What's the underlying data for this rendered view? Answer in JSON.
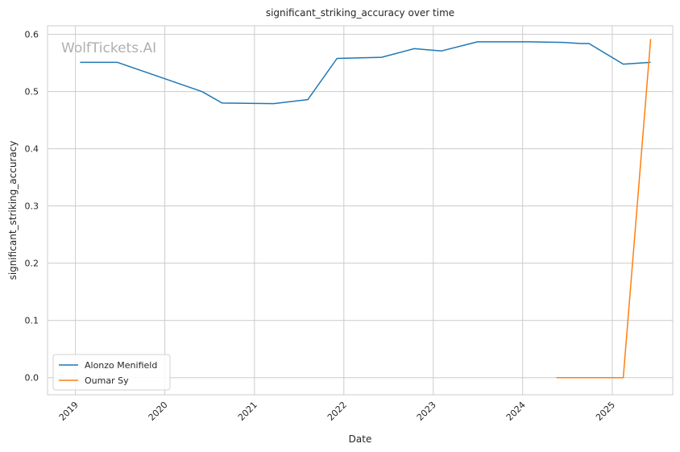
{
  "chart_data": {
    "type": "line",
    "title": "significant_striking_accuracy over time",
    "xlabel": "Date",
    "ylabel": "significant_striking_accuracy",
    "watermark": "WolfTickets.AI",
    "x_range": [
      "2018-09-09",
      "2025-09-05"
    ],
    "ylim": [
      -0.03,
      0.615
    ],
    "x_ticks": [
      {
        "date": "2019-01-01",
        "label": "2019"
      },
      {
        "date": "2020-01-01",
        "label": "2020"
      },
      {
        "date": "2021-01-01",
        "label": "2021"
      },
      {
        "date": "2022-01-01",
        "label": "2022"
      },
      {
        "date": "2023-01-01",
        "label": "2023"
      },
      {
        "date": "2024-01-01",
        "label": "2024"
      },
      {
        "date": "2025-01-01",
        "label": "2025"
      }
    ],
    "y_ticks": [
      {
        "value": 0.0,
        "label": "0.0"
      },
      {
        "value": 0.1,
        "label": "0.1"
      },
      {
        "value": 0.2,
        "label": "0.2"
      },
      {
        "value": 0.3,
        "label": "0.3"
      },
      {
        "value": 0.4,
        "label": "0.4"
      },
      {
        "value": 0.5,
        "label": "0.5"
      },
      {
        "value": 0.6,
        "label": "0.6"
      }
    ],
    "grid": true,
    "legend_position": "lower-left",
    "series": [
      {
        "name": "Alonzo Menifield",
        "color": "#1f77b4",
        "points": [
          {
            "x": "2019-01-20",
            "y": 0.551
          },
          {
            "x": "2019-06-22",
            "y": 0.551
          },
          {
            "x": "2020-06-01",
            "y": 0.5
          },
          {
            "x": "2020-08-22",
            "y": 0.48
          },
          {
            "x": "2021-03-20",
            "y": 0.479
          },
          {
            "x": "2021-08-07",
            "y": 0.486
          },
          {
            "x": "2021-12-04",
            "y": 0.558
          },
          {
            "x": "2022-06-04",
            "y": 0.56
          },
          {
            "x": "2022-10-15",
            "y": 0.575
          },
          {
            "x": "2023-02-04",
            "y": 0.571
          },
          {
            "x": "2023-07-01",
            "y": 0.587
          },
          {
            "x": "2024-01-20",
            "y": 0.587
          },
          {
            "x": "2024-06-15",
            "y": 0.586
          },
          {
            "x": "2024-08-24",
            "y": 0.584
          },
          {
            "x": "2024-09-28",
            "y": 0.584
          },
          {
            "x": "2025-02-15",
            "y": 0.548
          },
          {
            "x": "2025-06-07",
            "y": 0.551
          }
        ]
      },
      {
        "name": "Oumar Sy",
        "color": "#ff7f0e",
        "points": [
          {
            "x": "2024-05-18",
            "y": 0.0
          },
          {
            "x": "2025-02-15",
            "y": 0.0
          },
          {
            "x": "2025-06-07",
            "y": 0.592
          }
        ]
      }
    ]
  }
}
